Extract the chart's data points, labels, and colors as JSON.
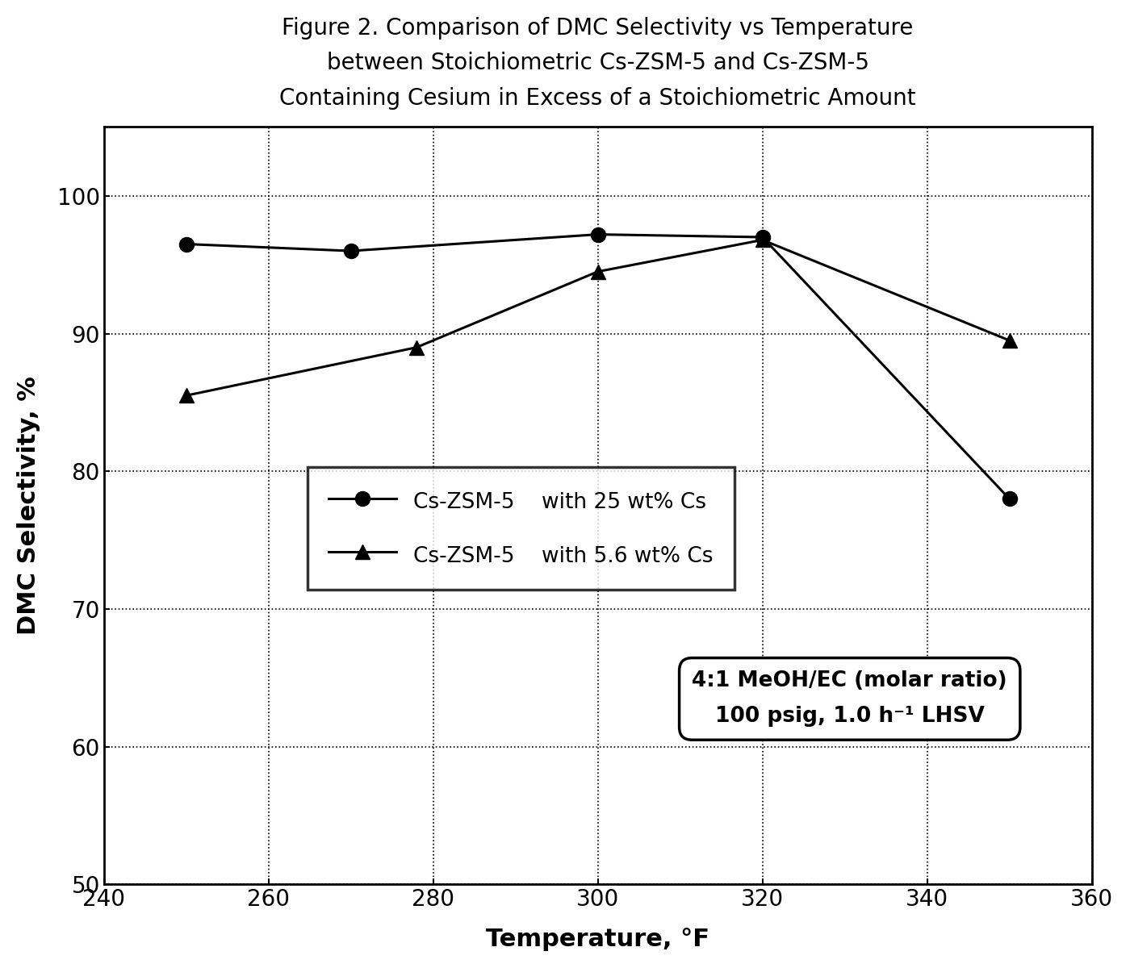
{
  "title": "Figure 2. Comparison of DMC Selectivity vs Temperature\nbetween Stoichiometric Cs-ZSM-5 and Cs-ZSM-5\nContaining Cesium in Excess of a Stoichiometric Amount",
  "xlabel": "Temperature, °F",
  "ylabel": "DMC Selectivity, %",
  "xlim": [
    240,
    360
  ],
  "ylim": [
    50,
    105
  ],
  "xticks": [
    240,
    260,
    280,
    300,
    320,
    340,
    360
  ],
  "yticks": [
    50,
    60,
    70,
    80,
    90,
    100
  ],
  "yticklabels": [
    "50",
    "60",
    "70",
    "80",
    "90",
    "100"
  ],
  "series1_x": [
    250,
    270,
    300,
    320,
    350
  ],
  "series1_y": [
    96.5,
    96.0,
    97.2,
    97.0,
    78.0
  ],
  "series1_label": "Cs-ZSM-5    with 25 wt% Cs",
  "series2_x": [
    250,
    278,
    300,
    320,
    350
  ],
  "series2_y": [
    85.5,
    89.0,
    94.5,
    96.8,
    89.5
  ],
  "series2_label": "Cs-ZSM-5    with 5.6 wt% Cs",
  "annotation_line1": "4:1 MeOH/EC (molar ratio)",
  "annotation_line2": "100 psig, 1.0 h⁻¹ LHSV",
  "background_color": "#ffffff",
  "grid_yticks_extra": [
    110
  ],
  "title_fontsize": 20,
  "label_fontsize": 22,
  "tick_fontsize": 20,
  "legend_fontsize": 19,
  "annot_fontsize": 19
}
